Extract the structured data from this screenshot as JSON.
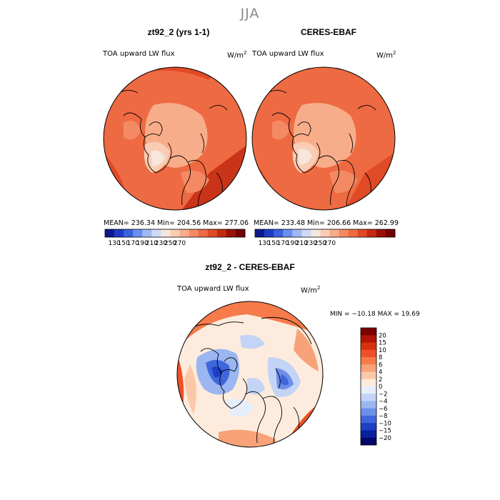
{
  "season": "JJA",
  "panels": [
    {
      "title": "zt92_2 (yrs 1-1)",
      "variable": "TOA upward LW flux",
      "units_base": "W/m",
      "units_exp": "2",
      "stats": "MEAN= 236.34    Min= 204.56    Max= 277.06"
    },
    {
      "title": "CERES-EBAF",
      "variable": "TOA upward LW flux",
      "units_base": "W/m",
      "units_exp": "2",
      "stats": "MEAN= 233.48    Min= 206.66    Max= 262.99"
    }
  ],
  "top_colorbar": {
    "labels": [
      "130",
      "150",
      "170",
      "190",
      "210",
      "230",
      "250",
      "270"
    ],
    "colors": [
      "#0c1a8c",
      "#1c3cc4",
      "#3a62de",
      "#6a8ef0",
      "#9fb8f5",
      "#cdd9f7",
      "#f6e7dc",
      "#f9cdb4",
      "#f8ad8a",
      "#f48a63",
      "#ee6a42",
      "#e04a25",
      "#c22a12",
      "#9a1006",
      "#720000"
    ]
  },
  "diff_panel": {
    "title": "zt92_2 - CERES-EBAF",
    "variable": "TOA upward LW flux",
    "units_base": "W/m",
    "units_exp": "2",
    "minmax": "MIN = −10.18  MAX =  19.69"
  },
  "diff_colorbar": {
    "labels": [
      "20",
      "15",
      "10",
      "8",
      "6",
      "4",
      "2",
      "0",
      "−2",
      "−4",
      "−6",
      "−8",
      "−10",
      "−15",
      "−20"
    ],
    "colors": [
      "#7a0000",
      "#b01606",
      "#d8300e",
      "#ee5126",
      "#f67a4a",
      "#f8a279",
      "#fbc8a8",
      "#fdecdd",
      "#e6eefb",
      "#c3d4f6",
      "#9bb6f1",
      "#6c8fe8",
      "#3f66dc",
      "#1d3fc6",
      "#0c1f9c",
      "#02086a"
    ]
  },
  "colors": {
    "ocean_warm": "#ee6a42",
    "arctic_cool": "#f8ad8a",
    "diff_neutral": "#fdecdd",
    "coastline": "#000000",
    "season_title": "#8a8a8a"
  }
}
